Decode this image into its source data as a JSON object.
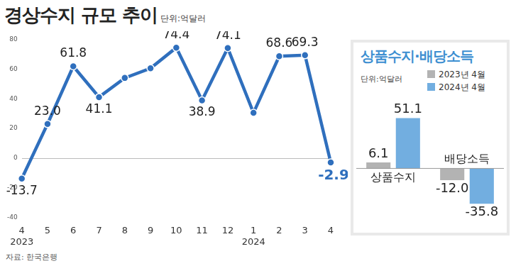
{
  "source": "자료: 한국은행",
  "chart_data": [
    {
      "type": "line",
      "title": "경상수지 규모 추이",
      "subtitle": "단위:억달러",
      "categories": [
        [
          "4",
          "2023"
        ],
        "5",
        "6",
        "7",
        "8",
        "9",
        "10",
        "11",
        "12",
        [
          "1",
          "2024"
        ],
        "2",
        "3",
        "4"
      ],
      "values": [
        -13.7,
        23.0,
        61.8,
        41.1,
        54,
        60.5,
        74.4,
        38.9,
        74.1,
        30.5,
        68.6,
        69.3,
        -2.9
      ],
      "value_labels": [
        "-13.7",
        "23.0",
        "61.8",
        "41.1",
        null,
        null,
        "74.4",
        "38.9",
        "74.1",
        null,
        "68.6",
        "69.3",
        "-2.9"
      ],
      "data_labels": true,
      "color": "#2f6fbd",
      "marker": "circle",
      "line_style": "solid",
      "ylim": [
        -40,
        80
      ],
      "yticks": [
        -40,
        -20,
        0,
        20,
        40,
        60,
        80
      ],
      "grid": false
    },
    {
      "type": "bar",
      "title": "상품수지·배당소득",
      "subtitle": "단위:억달러",
      "categories": [
        "상품수지",
        "배당소득"
      ],
      "series": [
        {
          "name": "2023년 4월",
          "color": "#b3b3b3",
          "values": [
            6.1,
            -12.0
          ],
          "value_labels": [
            "6.1",
            "-12.0"
          ]
        },
        {
          "name": "2024년 4월",
          "color": "#72aee0",
          "values": [
            51.1,
            -35.8
          ],
          "value_labels": [
            "51.1",
            "-35.8"
          ]
        }
      ],
      "data_labels": true,
      "ylim": [
        -45,
        60
      ],
      "tick_labels": "x",
      "grid": false,
      "legend": "top-right"
    }
  ]
}
